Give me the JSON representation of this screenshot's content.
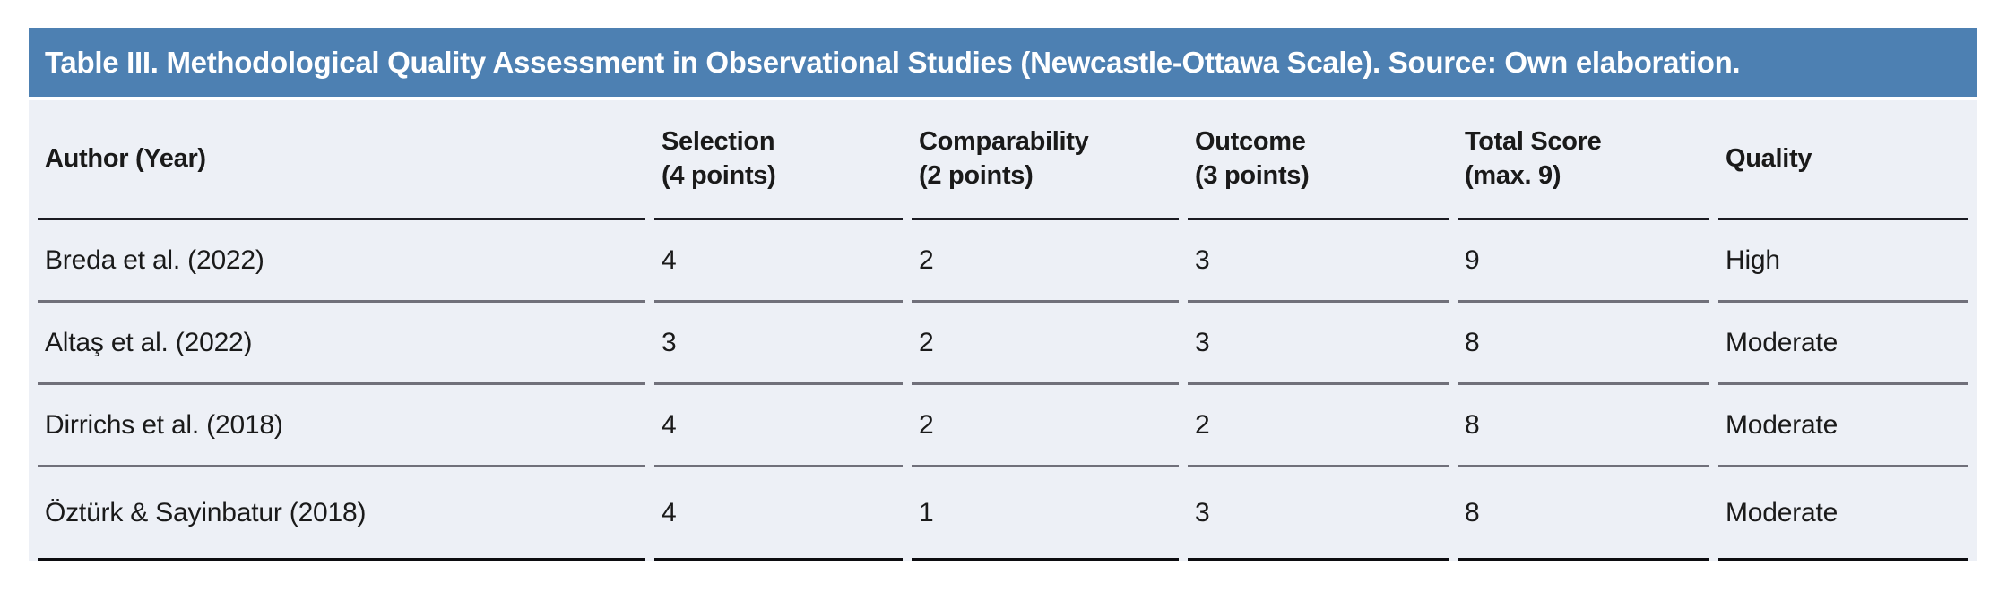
{
  "table": {
    "title": "Table III. Methodological Quality Assessment in Observational Studies (Newcastle-Ottawa Scale). Source: Own elaboration.",
    "columns": [
      {
        "label": "Author (Year)",
        "sub": ""
      },
      {
        "label": "Selection",
        "sub": "(4 points)"
      },
      {
        "label": "Comparability",
        "sub": "(2 points)"
      },
      {
        "label": "Outcome",
        "sub": "(3 points)"
      },
      {
        "label": "Total Score",
        "sub": "(max. 9)"
      },
      {
        "label": "Quality",
        "sub": ""
      }
    ],
    "rows": [
      {
        "author": "Breda et al. (2022)",
        "selection": "4",
        "comparability": "2",
        "outcome": "3",
        "total": "9",
        "quality": "High"
      },
      {
        "author": "Altaş et al. (2022)",
        "selection": "3",
        "comparability": "2",
        "outcome": "3",
        "total": "8",
        "quality": "Moderate"
      },
      {
        "author": "Dirrichs et al. (2018)",
        "selection": "4",
        "comparability": "2",
        "outcome": "2",
        "total": "8",
        "quality": "Moderate"
      },
      {
        "author": "Öztürk & Sayinbatur (2018)",
        "selection": "4",
        "comparability": "1",
        "outcome": "3",
        "total": "8",
        "quality": "Moderate"
      }
    ],
    "colors": {
      "header_bg": "#4d80b2",
      "row_bg": "#edf0f6",
      "title_color": "#ffffff",
      "text_color": "#1a1a1a",
      "header_divider": "#1b1b22",
      "row_divider": "#70707a",
      "bottom_divider": "#0c0c10",
      "page_bg": "#ffffff"
    }
  }
}
